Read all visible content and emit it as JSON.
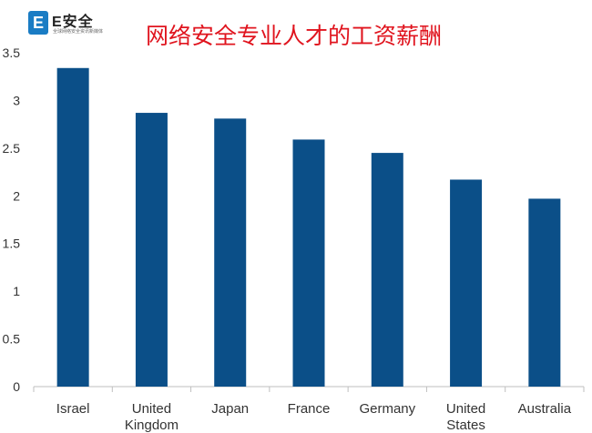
{
  "logo": {
    "mark": "E",
    "name": "E安全",
    "tagline": "全球网络安全资讯新媒体"
  },
  "chart_data": {
    "type": "bar",
    "title": "网络安全专业人才的工资薪酬",
    "xlabel": "",
    "ylabel": "",
    "categories": [
      [
        "Israel"
      ],
      [
        "United",
        "Kingdom"
      ],
      [
        "Japan"
      ],
      [
        "France"
      ],
      [
        "Germany"
      ],
      [
        "United",
        "States"
      ],
      [
        "Australia"
      ]
    ],
    "values": [
      3.34,
      2.87,
      2.81,
      2.59,
      2.45,
      2.17,
      1.97
    ],
    "ylim": [
      0,
      3.5
    ],
    "yticks": [
      {
        "v": 0,
        "label": "0"
      },
      {
        "v": 0.5,
        "label": "0.5"
      },
      {
        "v": 1,
        "label": "1"
      },
      {
        "v": 1.5,
        "label": "1.5"
      },
      {
        "v": 2,
        "label": "2"
      },
      {
        "v": 2.5,
        "label": "2.5"
      },
      {
        "v": 3,
        "label": "3"
      },
      {
        "v": 3.5,
        "label": "3.5"
      }
    ],
    "grid": false,
    "legend": "none",
    "bar_color": "#0b4f88"
  }
}
